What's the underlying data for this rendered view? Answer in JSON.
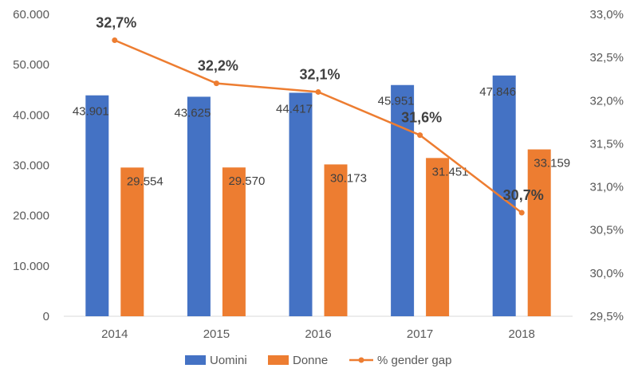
{
  "chart_data": {
    "type": "bar",
    "categories": [
      "2014",
      "2015",
      "2016",
      "2017",
      "2018"
    ],
    "series": [
      {
        "name": "Uomini",
        "type": "bar",
        "axis": "left",
        "color": "#4472C4",
        "values": [
          43901,
          43625,
          44417,
          45951,
          47846
        ],
        "labels": [
          "43.901",
          "43.625",
          "44.417",
          "45.951",
          "47.846"
        ]
      },
      {
        "name": "Donne",
        "type": "bar",
        "axis": "left",
        "color": "#ED7D31",
        "values": [
          29554,
          29570,
          30173,
          31451,
          33159
        ],
        "labels": [
          "29.554",
          "29.570",
          "30.173",
          "31.451",
          "33.159"
        ]
      },
      {
        "name": "% gender gap",
        "type": "line",
        "axis": "right",
        "color": "#ED7D31",
        "values": [
          32.7,
          32.2,
          32.1,
          31.6,
          30.7
        ],
        "labels": [
          "32,7%",
          "32,2%",
          "32,1%",
          "31,6%",
          "30,7%"
        ]
      }
    ],
    "y_left": {
      "ylim": [
        0,
        60000
      ],
      "ticks": [
        "0",
        "10.000",
        "20.000",
        "30.000",
        "40.000",
        "50.000",
        "60.000"
      ]
    },
    "y_right": {
      "ylim": [
        29.5,
        33.0
      ],
      "ticks": [
        "29,5%",
        "30,0%",
        "30,5%",
        "31,0%",
        "31,5%",
        "32,0%",
        "32,5%",
        "33,0%"
      ]
    },
    "grid": false,
    "legend_position": "bottom"
  }
}
